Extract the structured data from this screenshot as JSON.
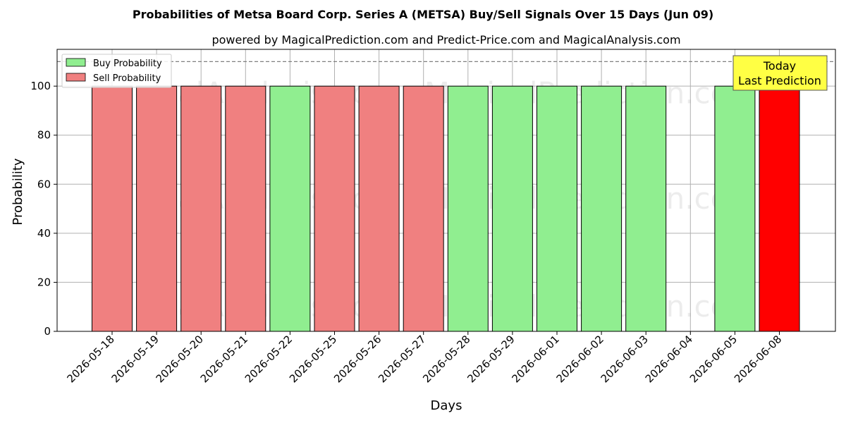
{
  "chart_data": {
    "type": "bar",
    "title": "Probabilities of Metsa Board Corp. Series A (METSA) Buy/Sell Signals Over 15 Days (Jun 09)",
    "subtitle": "powered by MagicalPrediction.com and Predict-Price.com and MagicalAnalysis.com",
    "xlabel": "Days",
    "ylabel": "Probability",
    "ylim": [
      0,
      115
    ],
    "yticks": [
      0,
      20,
      40,
      60,
      80,
      100
    ],
    "grid": true,
    "legend_position": "top-left",
    "reference_line": 110,
    "categories": [
      "2026-05-18",
      "2026-05-19",
      "2026-05-20",
      "2026-05-21",
      "2026-05-22",
      "2026-05-25",
      "2026-05-26",
      "2026-05-27",
      "2026-05-28",
      "2026-05-29",
      "2026-06-01",
      "2026-06-02",
      "2026-06-03",
      "2026-06-04",
      "2026-06-05",
      "2026-06-08"
    ],
    "series": [
      {
        "name": "Buy Probability",
        "color": "#90ee90",
        "values": [
          0,
          0,
          0,
          0,
          100,
          0,
          0,
          0,
          100,
          100,
          100,
          100,
          100,
          0,
          100,
          0
        ]
      },
      {
        "name": "Sell Probability",
        "color": "#f08080",
        "values": [
          100,
          100,
          100,
          100,
          0,
          100,
          100,
          100,
          0,
          0,
          0,
          0,
          0,
          0,
          0,
          100
        ]
      }
    ],
    "highlight": {
      "category": "2026-06-08",
      "color": "#ff0000"
    },
    "annotation": {
      "line1": "Today",
      "line2": "Last Prediction"
    },
    "watermarks": [
      "MagicalAnalysis.com",
      "MagicalPrediction.com"
    ]
  }
}
